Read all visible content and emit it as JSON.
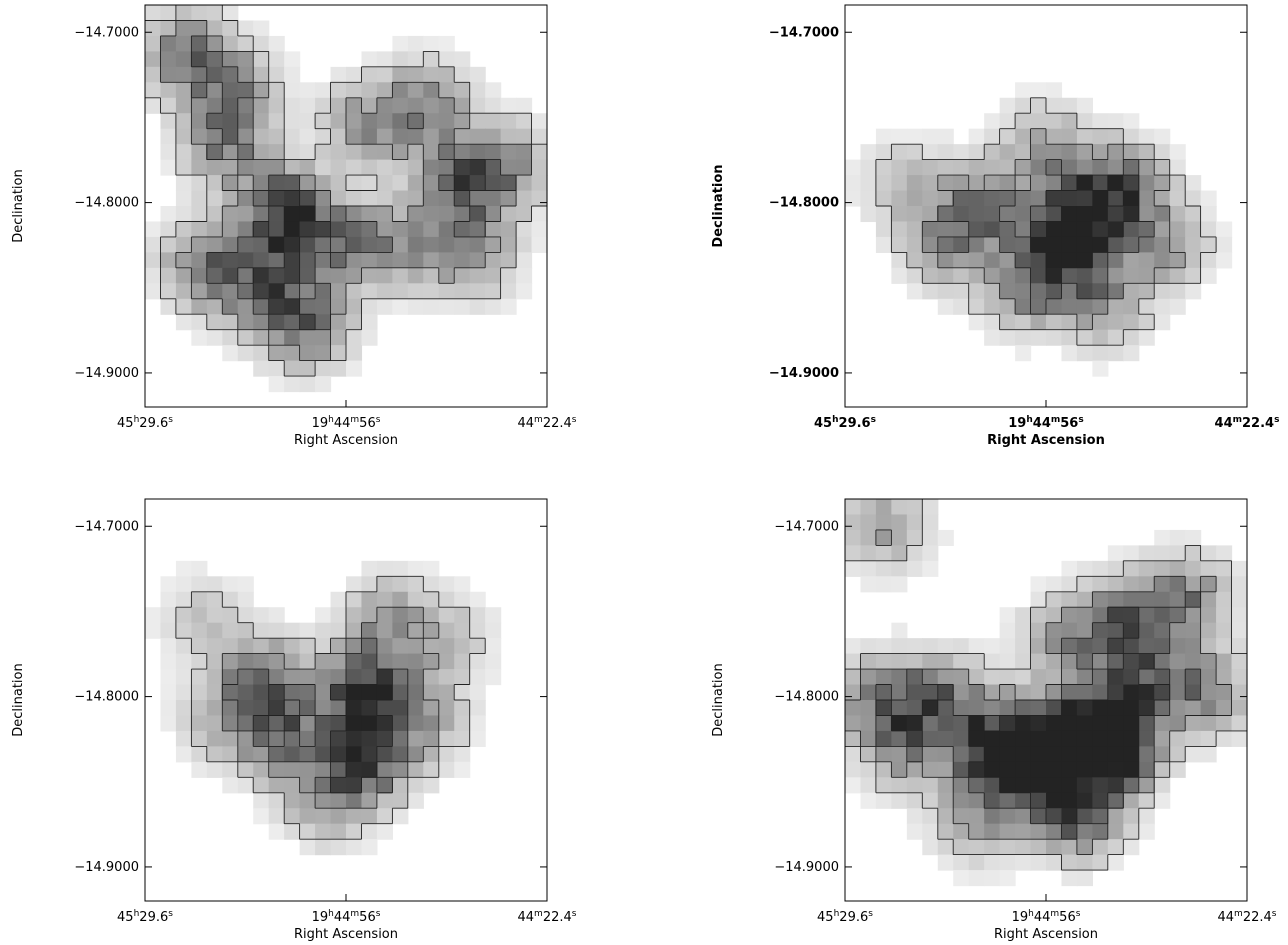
{
  "chart_data": [
    {
      "type": "heatmap",
      "title": "",
      "xlabel": "Right Ascension",
      "ylabel": "Declination",
      "xticks": [
        {
          "parts": [
            {
              "t": "45"
            },
            {
              "t": "h",
              "sup": true
            },
            {
              "t": "29.6"
            },
            {
              "t": "s",
              "sup": true
            }
          ]
        },
        {
          "parts": [
            {
              "t": "19"
            },
            {
              "t": "h",
              "sup": true
            },
            {
              "t": "44"
            },
            {
              "t": "m",
              "sup": true
            },
            {
              "t": "56"
            },
            {
              "t": "s",
              "sup": true
            }
          ]
        },
        {
          "parts": [
            {
              "t": "44"
            },
            {
              "t": "m",
              "sup": true
            },
            {
              "t": "22.4"
            },
            {
              "t": "s",
              "sup": true
            }
          ]
        }
      ],
      "yticks": [
        "-14.7000",
        "-14.8000",
        "-14.9000"
      ],
      "ylim": [
        -14.92,
        -14.684
      ],
      "contours": true,
      "grid": false,
      "colormap": "grayscale",
      "bold_labels": false,
      "blobs": [
        [
          0.1,
          0.12,
          0.55
        ],
        [
          0.2,
          0.35,
          0.55
        ],
        [
          0.35,
          0.52,
          0.95
        ],
        [
          0.3,
          0.7,
          0.6
        ],
        [
          0.5,
          0.6,
          0.5
        ],
        [
          0.4,
          0.8,
          0.6
        ],
        [
          0.7,
          0.25,
          0.55
        ],
        [
          0.78,
          0.45,
          0.6
        ],
        [
          0.9,
          0.4,
          0.5
        ],
        [
          0.15,
          0.65,
          0.6
        ],
        [
          0.55,
          0.3,
          0.45
        ],
        [
          0.65,
          0.6,
          0.4
        ],
        [
          0.22,
          0.2,
          0.45
        ],
        [
          0.82,
          0.62,
          0.45
        ]
      ]
    },
    {
      "type": "heatmap",
      "title": "",
      "xlabel": "Right Ascension",
      "ylabel": "Declination",
      "xticks": [
        {
          "parts": [
            {
              "t": "45"
            },
            {
              "t": "h",
              "sup": true
            },
            {
              "t": "29.6"
            },
            {
              "t": "s",
              "sup": true
            }
          ]
        },
        {
          "parts": [
            {
              "t": "19"
            },
            {
              "t": "h",
              "sup": true
            },
            {
              "t": "44"
            },
            {
              "t": "m",
              "sup": true
            },
            {
              "t": "56"
            },
            {
              "t": "s",
              "sup": true
            }
          ]
        },
        {
          "parts": [
            {
              "t": "44"
            },
            {
              "t": "m",
              "sup": true
            },
            {
              "t": "22.4"
            },
            {
              "t": "s",
              "sup": true
            }
          ]
        }
      ],
      "yticks": [
        "-14.7000",
        "-14.8000",
        "-14.9000"
      ],
      "ylim": [
        -14.92,
        -14.684
      ],
      "contours": true,
      "grid": false,
      "colormap": "grayscale",
      "bold_labels": true,
      "blobs": [
        [
          0.6,
          0.52,
          0.9
        ],
        [
          0.55,
          0.62,
          0.7
        ],
        [
          0.35,
          0.5,
          0.6
        ],
        [
          0.45,
          0.7,
          0.5
        ],
        [
          0.7,
          0.45,
          0.55
        ],
        [
          0.25,
          0.6,
          0.4
        ],
        [
          0.8,
          0.6,
          0.4
        ],
        [
          0.5,
          0.35,
          0.4
        ],
        [
          0.15,
          0.45,
          0.3
        ],
        [
          0.65,
          0.75,
          0.4
        ]
      ]
    },
    {
      "type": "heatmap",
      "title": "",
      "xlabel": "Right Ascension",
      "ylabel": "Declination",
      "xticks": [
        {
          "parts": [
            {
              "t": "45"
            },
            {
              "t": "h",
              "sup": true
            },
            {
              "t": "29.6"
            },
            {
              "t": "s",
              "sup": true
            }
          ]
        },
        {
          "parts": [
            {
              "t": "19"
            },
            {
              "t": "h",
              "sup": true
            },
            {
              "t": "44"
            },
            {
              "t": "m",
              "sup": true
            },
            {
              "t": "56"
            },
            {
              "t": "s",
              "sup": true
            }
          ]
        },
        {
          "parts": [
            {
              "t": "44"
            },
            {
              "t": "m",
              "sup": true
            },
            {
              "t": "22.4"
            },
            {
              "t": "s",
              "sup": true
            }
          ]
        }
      ],
      "yticks": [
        "-14.7000",
        "-14.8000",
        "-14.9000"
      ],
      "ylim": [
        -14.92,
        -14.684
      ],
      "contours": true,
      "grid": false,
      "colormap": "grayscale",
      "bold_labels": false,
      "blobs": [
        [
          0.55,
          0.48,
          0.95
        ],
        [
          0.55,
          0.65,
          0.75
        ],
        [
          0.3,
          0.45,
          0.6
        ],
        [
          0.35,
          0.6,
          0.55
        ],
        [
          0.2,
          0.55,
          0.35
        ],
        [
          0.45,
          0.75,
          0.4
        ],
        [
          0.7,
          0.55,
          0.35
        ],
        [
          0.15,
          0.3,
          0.25
        ],
        [
          0.75,
          0.35,
          0.3
        ],
        [
          0.6,
          0.3,
          0.4
        ]
      ]
    },
    {
      "type": "heatmap",
      "title": "",
      "xlabel": "Right Ascension",
      "ylabel": "Declination",
      "xticks": [
        {
          "parts": [
            {
              "t": "45"
            },
            {
              "t": "h",
              "sup": true
            },
            {
              "t": "29.6"
            },
            {
              "t": "s",
              "sup": true
            }
          ]
        },
        {
          "parts": [
            {
              "t": "19"
            },
            {
              "t": "h",
              "sup": true
            },
            {
              "t": "44"
            },
            {
              "t": "m",
              "sup": true
            },
            {
              "t": "56"
            },
            {
              "t": "s",
              "sup": true
            }
          ]
        },
        {
          "parts": [
            {
              "t": "44"
            },
            {
              "t": "m",
              "sup": true
            },
            {
              "t": "22.4"
            },
            {
              "t": "s",
              "sup": true
            }
          ]
        }
      ],
      "yticks": [
        "-14.7000",
        "-14.8000",
        "-14.9000"
      ],
      "ylim": [
        -14.92,
        -14.684
      ],
      "contours": true,
      "grid": false,
      "colormap": "grayscale",
      "bold_labels": false,
      "blobs": [
        [
          0.38,
          0.63,
          1.0
        ],
        [
          0.63,
          0.58,
          0.95
        ],
        [
          0.67,
          0.62,
          0.85
        ],
        [
          0.58,
          0.78,
          0.75
        ],
        [
          0.1,
          0.5,
          0.6
        ],
        [
          0.7,
          0.3,
          0.6
        ],
        [
          0.85,
          0.25,
          0.55
        ],
        [
          0.75,
          0.45,
          0.55
        ],
        [
          0.25,
          0.5,
          0.55
        ],
        [
          0.48,
          0.6,
          0.55
        ],
        [
          0.9,
          0.48,
          0.5
        ],
        [
          0.55,
          0.35,
          0.45
        ],
        [
          0.15,
          0.62,
          0.45
        ],
        [
          0.33,
          0.8,
          0.4
        ],
        [
          0.1,
          0.07,
          0.4
        ],
        [
          0.5,
          0.7,
          0.4
        ]
      ]
    }
  ]
}
